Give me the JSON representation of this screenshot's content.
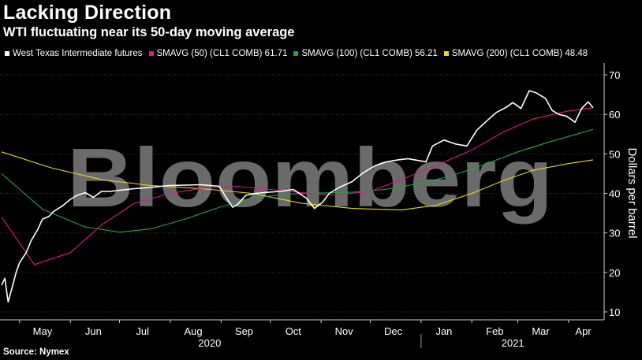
{
  "title": "Lacking Direction",
  "subtitle": "WTI fluctuating near its 50-day moving average",
  "source": "Source: Nymex",
  "watermark": "Bloomberg",
  "colors": {
    "wti": "#ffffff",
    "sma50": "#e0178a",
    "sma100": "#1fa83a",
    "sma200": "#e8d820",
    "watermark": "#6a6a6a"
  },
  "chart_data": {
    "type": "line",
    "ylabel": "Dollars per barrel",
    "ylim": [
      8,
      73
    ],
    "yticks": [
      10,
      20,
      30,
      40,
      50,
      60,
      70
    ],
    "x_range": [
      "2020-04-20",
      "2021-04-16"
    ],
    "month_ticks": [
      "May",
      "Jun",
      "Jul",
      "Aug",
      "Sep",
      "Oct",
      "Nov",
      "Dec",
      "Jan",
      "Feb",
      "Mar",
      "Apr"
    ],
    "month_tick_dates": [
      "2020-05-15",
      "2020-06-15",
      "2020-07-15",
      "2020-08-15",
      "2020-09-15",
      "2020-10-15",
      "2020-11-15",
      "2020-12-15",
      "2021-01-15",
      "2021-02-15",
      "2021-03-15",
      "2021-04-10"
    ],
    "year_labels": [
      {
        "label": "2020",
        "date": "2020-08-25"
      },
      {
        "label": "2021",
        "date": "2021-02-26"
      }
    ],
    "series": [
      {
        "name": "West Texas Intermediate futures",
        "legend": "West Texas Intermediate futures",
        "x": [
          "2020-04-20",
          "2020-04-22",
          "2020-04-24",
          "2020-04-27",
          "2020-04-29",
          "2020-05-01",
          "2020-05-05",
          "2020-05-08",
          "2020-05-12",
          "2020-05-15",
          "2020-05-19",
          "2020-05-22",
          "2020-05-27",
          "2020-06-01",
          "2020-06-05",
          "2020-06-10",
          "2020-06-15",
          "2020-06-20",
          "2020-06-25",
          "2020-07-01",
          "2020-07-10",
          "2020-07-20",
          "2020-07-31",
          "2020-08-10",
          "2020-08-20",
          "2020-08-31",
          "2020-09-04",
          "2020-09-08",
          "2020-09-11",
          "2020-09-16",
          "2020-09-22",
          "2020-09-30",
          "2020-10-07",
          "2020-10-15",
          "2020-10-23",
          "2020-10-28",
          "2020-11-02",
          "2020-11-06",
          "2020-11-12",
          "2020-11-20",
          "2020-11-27",
          "2020-12-04",
          "2020-12-11",
          "2020-12-18",
          "2020-12-24",
          "2021-01-04",
          "2021-01-08",
          "2021-01-15",
          "2021-01-22",
          "2021-01-29",
          "2021-02-04",
          "2021-02-10",
          "2021-02-16",
          "2021-02-22",
          "2021-02-26",
          "2021-03-03",
          "2021-03-08",
          "2021-03-12",
          "2021-03-18",
          "2021-03-22",
          "2021-03-26",
          "2021-03-31",
          "2021-04-05",
          "2021-04-09",
          "2021-04-13",
          "2021-04-16"
        ],
        "y": [
          16.8,
          18.5,
          12.5,
          17.0,
          20.2,
          22.5,
          25.0,
          28.0,
          30.8,
          33.5,
          34.2,
          35.5,
          36.8,
          38.5,
          39.5,
          40.2,
          39.0,
          40.5,
          40.5,
          40.8,
          41.2,
          41.5,
          42.0,
          42.1,
          42.2,
          41.8,
          39.0,
          36.5,
          37.2,
          39.5,
          40.0,
          40.3,
          40.5,
          41.0,
          38.8,
          36.2,
          37.8,
          40.0,
          41.5,
          43.0,
          45.3,
          47.0,
          48.0,
          48.5,
          48.8,
          48.0,
          52.0,
          53.5,
          52.5,
          52.0,
          56.0,
          58.3,
          60.5,
          61.8,
          63.0,
          61.5,
          66.0,
          65.5,
          64.0,
          61.0,
          60.0,
          59.5,
          58.0,
          61.5,
          63.2,
          61.7
        ]
      },
      {
        "name": "SMAVG (50) (CL1 COMB)",
        "legend": "SMAVG (50)  (CL1 COMB)  61.71",
        "x": [
          "2020-04-20",
          "2020-05-10",
          "2020-06-01",
          "2020-06-20",
          "2020-07-10",
          "2020-08-01",
          "2020-08-20",
          "2020-09-10",
          "2020-10-01",
          "2020-10-20",
          "2020-11-10",
          "2020-12-01",
          "2020-12-20",
          "2021-01-10",
          "2021-02-01",
          "2021-02-20",
          "2021-03-10",
          "2021-03-31",
          "2021-04-16"
        ],
        "y": [
          34.0,
          22.0,
          25.0,
          32.0,
          37.5,
          40.0,
          41.3,
          41.8,
          41.0,
          40.2,
          39.6,
          40.5,
          43.5,
          47.0,
          51.0,
          55.5,
          58.8,
          60.8,
          61.7
        ]
      },
      {
        "name": "SMAVG (100) (CL1 COMB)",
        "legend": "SMAVG (100)  (CL1 COMB)  56.21",
        "x": [
          "2020-04-20",
          "2020-05-15",
          "2020-06-10",
          "2020-07-01",
          "2020-07-20",
          "2020-08-10",
          "2020-08-31",
          "2020-09-20",
          "2020-10-10",
          "2020-10-31",
          "2020-11-20",
          "2020-12-10",
          "2020-12-31",
          "2021-01-20",
          "2021-02-10",
          "2021-03-01",
          "2021-03-20",
          "2021-04-16"
        ],
        "y": [
          45.0,
          36.0,
          31.5,
          30.2,
          31.0,
          33.5,
          36.5,
          38.8,
          39.8,
          40.1,
          40.3,
          41.0,
          42.5,
          44.5,
          47.5,
          50.5,
          53.0,
          56.2
        ]
      },
      {
        "name": "SMAVG (200) (CL1 COMB)",
        "legend": "SMAVG (200)  (CL1 COMB)  48.48",
        "x": [
          "2020-04-20",
          "2020-05-20",
          "2020-06-20",
          "2020-07-20",
          "2020-08-20",
          "2020-09-20",
          "2020-10-20",
          "2020-11-20",
          "2020-12-20",
          "2021-01-10",
          "2021-02-01",
          "2021-02-20",
          "2021-03-10",
          "2021-03-31",
          "2021-04-16"
        ],
        "y": [
          50.5,
          46.5,
          43.5,
          42.0,
          41.2,
          40.0,
          37.5,
          36.2,
          35.8,
          37.0,
          40.0,
          43.2,
          45.8,
          47.5,
          48.5
        ]
      }
    ]
  }
}
